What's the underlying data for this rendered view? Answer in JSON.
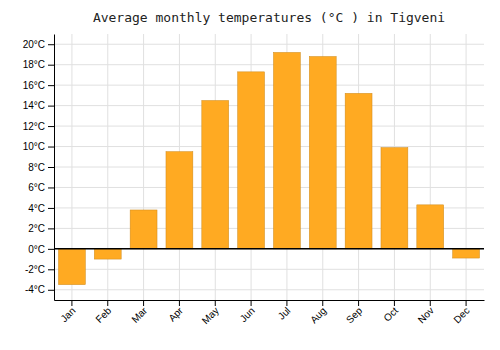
{
  "chart_data": {
    "type": "bar",
    "title": "Average monthly temperatures (°C ) in Tigveni",
    "categories": [
      "Jan",
      "Feb",
      "Mar",
      "Apr",
      "May",
      "Jun",
      "Jul",
      "Aug",
      "Sep",
      "Oct",
      "Nov",
      "Dec"
    ],
    "values": [
      -3.5,
      -1.0,
      3.8,
      9.5,
      14.5,
      17.3,
      19.2,
      18.8,
      15.2,
      9.9,
      4.3,
      -0.9
    ],
    "color": "#FFAA22",
    "ylim": [
      -5,
      21
    ],
    "yticks": [
      {
        "value": -4,
        "label": "-4°C"
      },
      {
        "value": -2,
        "label": "-2°C"
      },
      {
        "value": 0,
        "label": "0°C"
      },
      {
        "value": 2,
        "label": "2°C"
      },
      {
        "value": 4,
        "label": "4°C"
      },
      {
        "value": 6,
        "label": "6°C"
      },
      {
        "value": 8,
        "label": "8°C"
      },
      {
        "value": 10,
        "label": "10°C"
      },
      {
        "value": 12,
        "label": "12°C"
      },
      {
        "value": 14,
        "label": "14°C"
      },
      {
        "value": 16,
        "label": "16°C"
      },
      {
        "value": 18,
        "label": "18°C"
      },
      {
        "value": 20,
        "label": "20°C"
      }
    ],
    "grid": true
  }
}
